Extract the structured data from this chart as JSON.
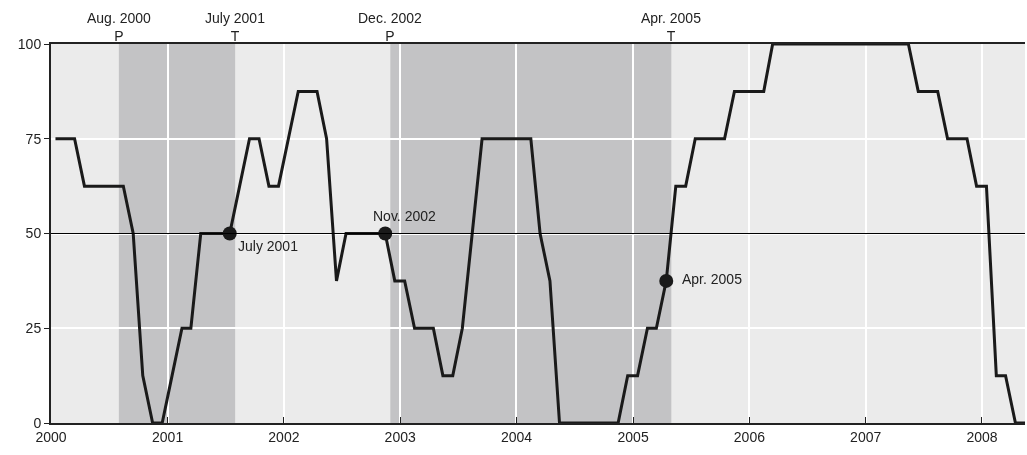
{
  "chart_data": {
    "type": "line",
    "x": [
      "2000-01-15",
      "2000-02-15",
      "2000-03-15",
      "2000-04-15",
      "2000-05-15",
      "2000-06-15",
      "2000-07-15",
      "2000-08-15",
      "2000-09-15",
      "2000-10-15",
      "2000-11-15",
      "2000-12-15",
      "2001-01-15",
      "2001-02-15",
      "2001-03-15",
      "2001-04-15",
      "2001-05-15",
      "2001-06-15",
      "2001-07-15",
      "2001-08-15",
      "2001-09-15",
      "2001-10-15",
      "2001-11-15",
      "2001-12-15",
      "2002-01-15",
      "2002-02-15",
      "2002-03-15",
      "2002-04-15",
      "2002-05-15",
      "2002-06-15",
      "2002-07-15",
      "2002-08-15",
      "2002-09-15",
      "2002-10-15",
      "2002-11-15",
      "2002-12-15",
      "2003-01-15",
      "2003-02-15",
      "2003-03-15",
      "2003-04-15",
      "2003-05-15",
      "2003-06-15",
      "2003-07-15",
      "2003-08-15",
      "2003-09-15",
      "2003-10-15",
      "2003-11-15",
      "2003-12-15",
      "2004-01-15",
      "2004-02-15",
      "2004-03-15",
      "2004-04-15",
      "2004-05-15",
      "2004-06-15",
      "2004-07-15",
      "2004-08-15",
      "2004-09-15",
      "2004-10-15",
      "2004-11-15",
      "2004-12-15",
      "2005-01-15",
      "2005-02-15",
      "2005-03-15",
      "2005-04-15",
      "2005-05-15",
      "2005-06-15",
      "2005-07-15",
      "2005-08-15",
      "2005-09-15",
      "2005-10-15",
      "2005-11-15",
      "2005-12-15",
      "2006-01-15",
      "2006-02-15",
      "2006-03-15",
      "2006-04-15",
      "2006-05-15",
      "2006-06-15",
      "2006-07-15",
      "2006-08-15",
      "2006-09-15",
      "2006-10-15",
      "2006-11-15",
      "2006-12-15",
      "2007-01-15",
      "2007-02-15",
      "2007-03-15",
      "2007-04-15",
      "2007-05-15",
      "2007-06-15",
      "2007-07-15",
      "2007-08-15",
      "2007-09-15",
      "2007-10-15",
      "2007-11-15",
      "2007-12-15",
      "2008-01-15",
      "2008-02-15",
      "2008-03-15",
      "2008-04-15",
      "2008-05-15"
    ],
    "series": [
      {
        "color": "#1a1a1a",
        "marker": "none",
        "values": [
          75,
          75,
          75,
          62.5,
          62.5,
          62.5,
          62.5,
          62.5,
          50,
          12.5,
          0,
          0,
          12.5,
          25,
          25,
          50,
          50,
          50,
          50,
          62.5,
          75,
          75,
          62.5,
          62.5,
          75,
          87.5,
          87.5,
          87.5,
          75,
          37.5,
          50,
          50,
          50,
          50,
          50,
          37.5,
          37.5,
          25,
          25,
          25,
          12.5,
          12.5,
          25,
          50,
          75,
          75,
          75,
          75,
          75,
          75,
          50,
          37.5,
          0,
          0,
          0,
          0,
          0,
          0,
          0,
          12.5,
          12.5,
          25,
          25,
          37.5,
          62.5,
          62.5,
          75,
          75,
          75,
          75,
          87.5,
          87.5,
          87.5,
          87.5,
          100,
          100,
          100,
          100,
          100,
          100,
          100,
          100,
          100,
          100,
          100,
          100,
          100,
          100,
          100,
          87.5,
          87.5,
          87.5,
          75,
          75,
          75,
          62.5,
          62.5,
          12.5,
          12.5,
          0,
          0
        ]
      },
      {
        "type": "scatter",
        "color": "#1a1a1a",
        "marker": "circle",
        "x": [
          "2001-07-15",
          "2002-11-15",
          "2005-04-15"
        ],
        "values": [
          50,
          50,
          37.5
        ]
      }
    ],
    "annotations": [
      {
        "text": "July 2001",
        "x": "2001-07-15",
        "y": 50
      },
      {
        "text": "Nov. 2002",
        "x": "2002-11-15",
        "y": 50
      },
      {
        "text": "Apr. 2005",
        "x": "2005-04-15",
        "y": 37.5
      },
      {
        "text": "Aug. 2000\nP",
        "x": "2000-08-01",
        "y": 100
      },
      {
        "text": "July 2001\nT",
        "x": "2001-08-01",
        "y": 100
      },
      {
        "text": "Dec. 2002\nP",
        "x": "2002-12-01",
        "y": 100
      },
      {
        "text": "Apr. 2005\nT",
        "x": "2005-05-01",
        "y": 100
      }
    ],
    "bands": [
      {
        "axis": "x",
        "from": "2000-08-01",
        "to": "2001-08-01",
        "color": "#c3c3c5"
      },
      {
        "axis": "x",
        "from": "2002-12-01",
        "to": "2005-05-01",
        "color": "#c3c3c5"
      }
    ],
    "ref_lines": [
      {
        "axis": "y",
        "value": 50,
        "color": "#000000"
      }
    ],
    "xlim": [
      "2000-01-01",
      "2008-05-15"
    ],
    "xticks": [
      {
        "value": "2000-01-01",
        "label": "2000"
      },
      {
        "value": "2001-01-01",
        "label": "2001"
      },
      {
        "value": "2002-01-01",
        "label": "2002"
      },
      {
        "value": "2003-01-01",
        "label": "2003"
      },
      {
        "value": "2004-01-01",
        "label": "2004"
      },
      {
        "value": "2005-01-01",
        "label": "2005"
      },
      {
        "value": "2006-01-01",
        "label": "2006"
      },
      {
        "value": "2007-01-01",
        "label": "2007"
      },
      {
        "value": "2008-01-01",
        "label": "2008"
      }
    ],
    "ylim": [
      0,
      100
    ],
    "yticks": [
      0,
      25,
      50,
      75,
      100
    ],
    "grid": true
  }
}
